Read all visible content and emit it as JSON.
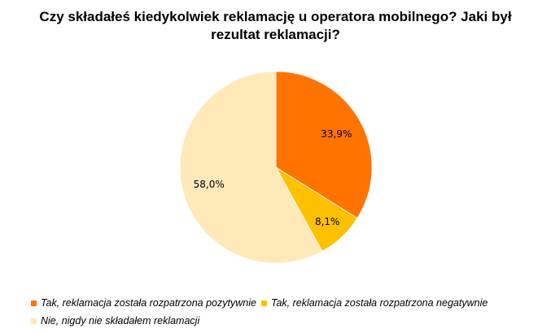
{
  "chart_data": {
    "type": "pie",
    "title_lines": [
      "Czy składałeś kiedykolwiek reklamację u operatora mobilnego? Jaki był",
      "rezultat reklamacji?"
    ],
    "slices": [
      {
        "name": "Tak, reklamacja została rozpatrzona pozytywnie",
        "value": 33.9,
        "label": "33,9%",
        "color": "#FF7300"
      },
      {
        "name": "Tak, reklamacja została rozpatrzona negatywnie",
        "value": 8.1,
        "label": "8,1%",
        "color": "#FFC000"
      },
      {
        "name": "Nie, nigdy nie składałem reklamacji",
        "value": 58.0,
        "label": "58,0%",
        "color": "#FFE9B8"
      }
    ],
    "legend_placement": "bottom"
  }
}
